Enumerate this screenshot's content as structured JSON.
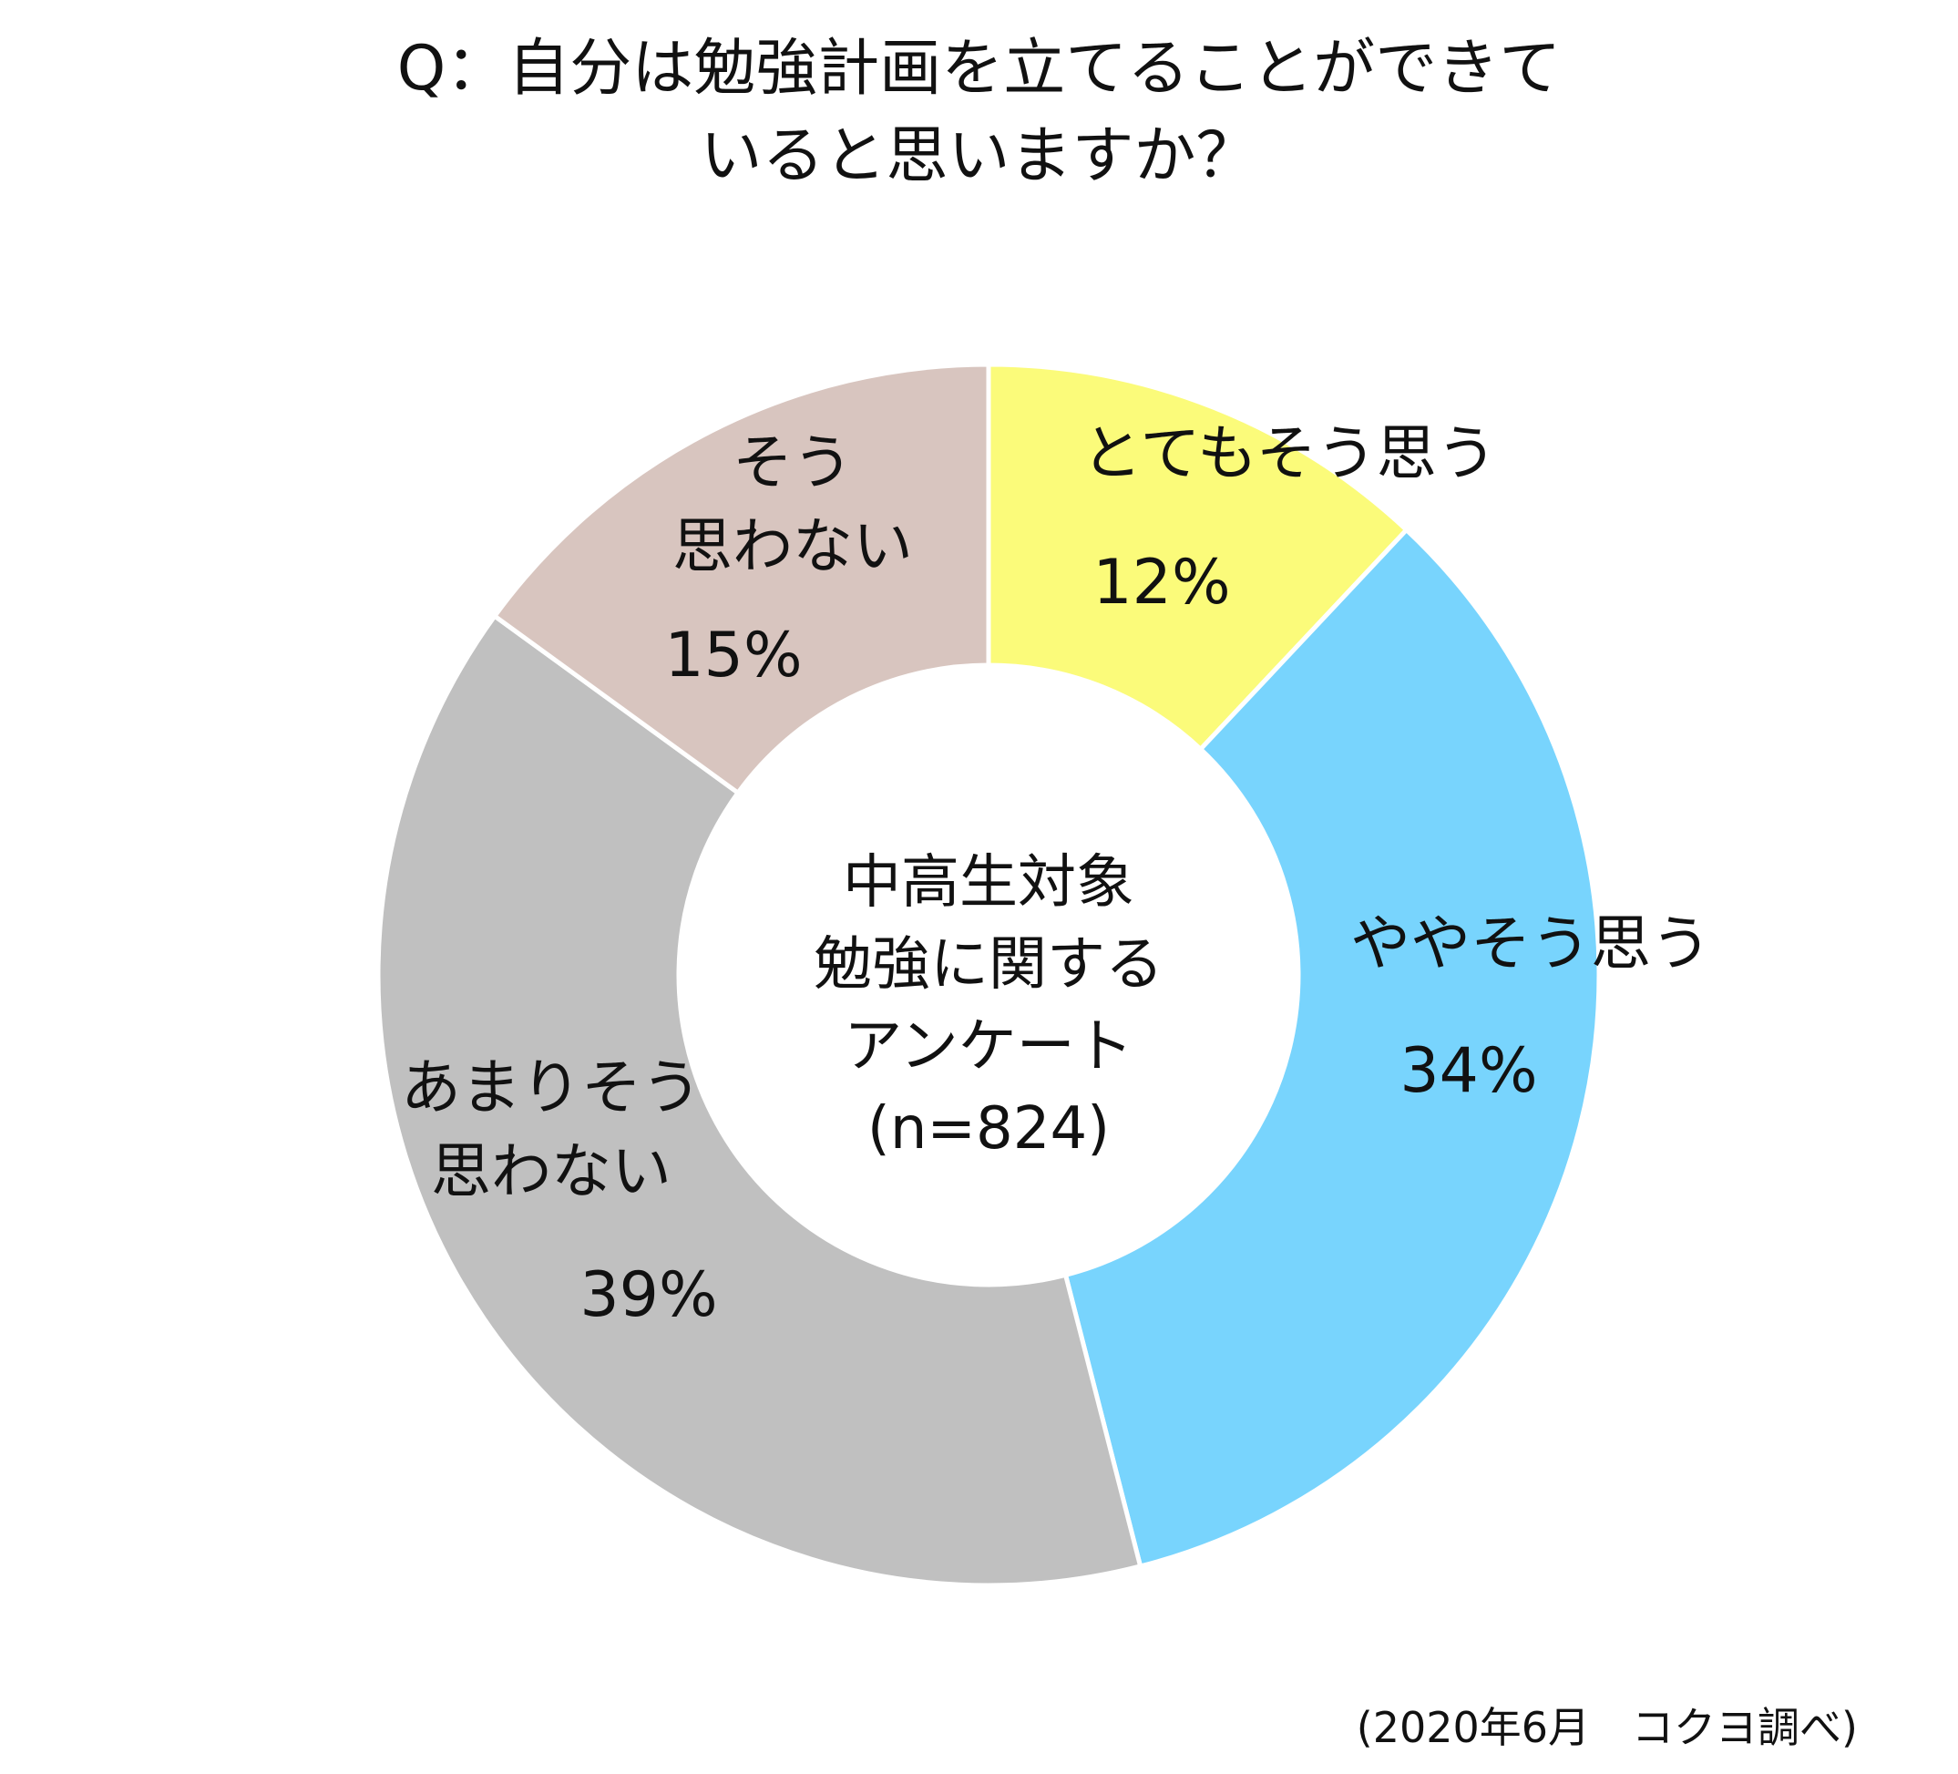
{
  "chart_data": {
    "type": "pie",
    "donut": true,
    "title_lines": [
      "Q：自分は勉強計画を立てることができて",
      "いると思いますか？"
    ],
    "center_label_lines": [
      "中高生対象",
      "勉強に関する",
      "アンケート",
      "(n=824)"
    ],
    "unit": "%",
    "slices": [
      {
        "label_lines": [
          "とてもそう思う"
        ],
        "value": 12,
        "value_label": "12%",
        "color": "#FBFB7A"
      },
      {
        "label_lines": [
          "ややそう思う"
        ],
        "value": 34,
        "value_label": "34%",
        "color": "#78D4FD"
      },
      {
        "label_lines": [
          "あまりそう",
          "思わない"
        ],
        "value": 39,
        "value_label": "39%",
        "color": "#C0C0C0"
      },
      {
        "label_lines": [
          "そう",
          "思わない"
        ],
        "value": 15,
        "value_label": "15%",
        "color": "#D8C5BF"
      }
    ],
    "start": "top",
    "direction": "clockwise",
    "source": "(2020年6月　コクヨ調べ)"
  }
}
